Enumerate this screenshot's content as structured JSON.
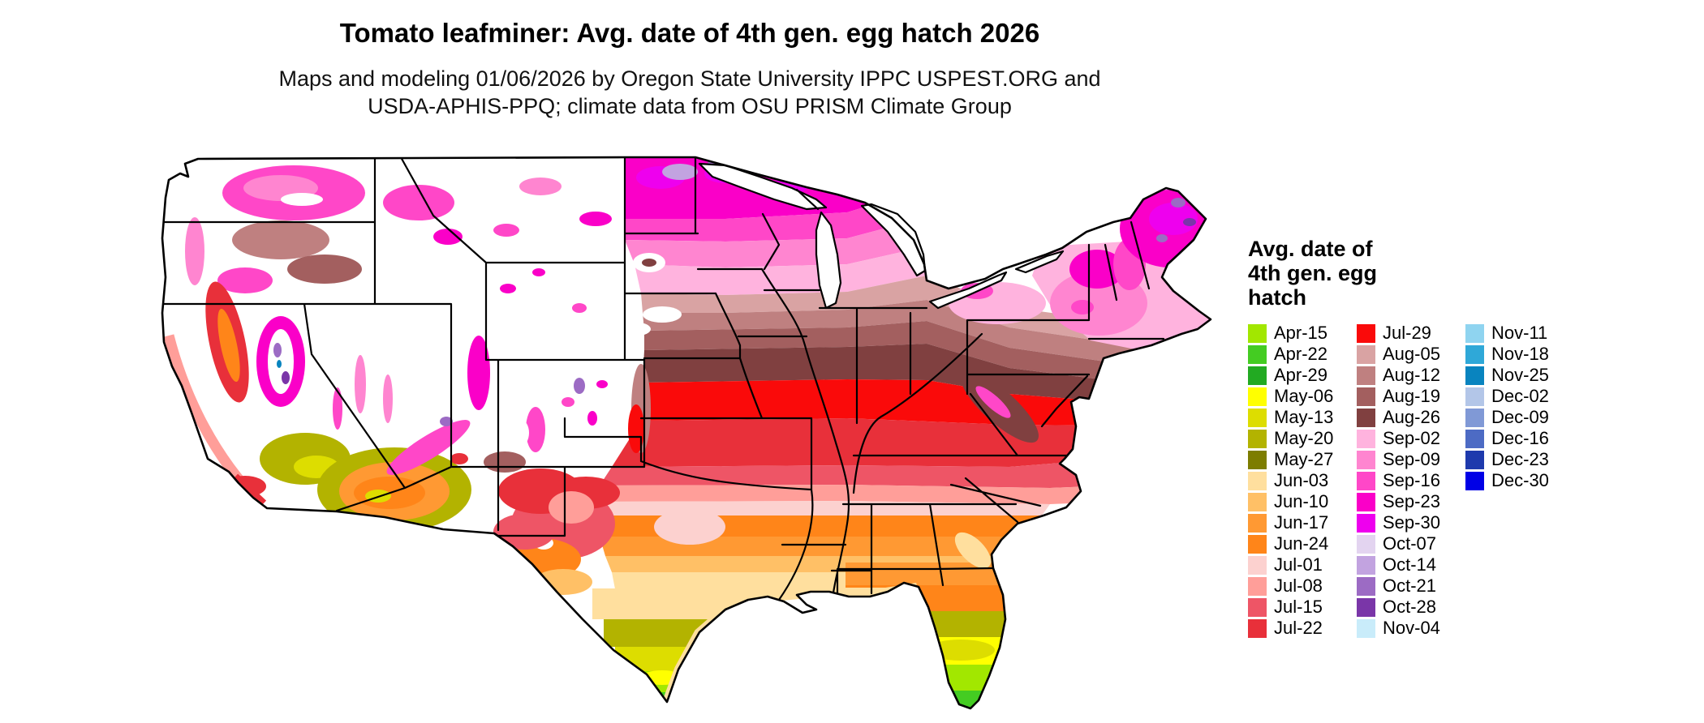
{
  "header": {
    "title": "Tomato leafminer: Avg. date of 4th gen. egg hatch 2026",
    "subtitle_line1": "Maps and modeling 01/06/2026 by Oregon State University IPPC USPEST.ORG and",
    "subtitle_line2": "USDA-APHIS-PPQ; climate data from OSU PRISM Climate Group"
  },
  "legend": {
    "title_lines": [
      "Avg. date of",
      "4th gen. egg",
      "hatch"
    ],
    "columns": [
      {
        "items": [
          {
            "label": "Apr-15",
            "color": "#a2e700"
          },
          {
            "label": "Apr-22",
            "color": "#44cc22"
          },
          {
            "label": "Apr-29",
            "color": "#22aa22"
          },
          {
            "label": "May-06",
            "color": "#ffff00"
          },
          {
            "label": "May-13",
            "color": "#dddd00"
          },
          {
            "label": "May-20",
            "color": "#b3b300"
          },
          {
            "label": "May-27",
            "color": "#7d7d00"
          },
          {
            "label": "Jun-03",
            "color": "#ffdf9e"
          },
          {
            "label": "Jun-10",
            "color": "#ffc066"
          },
          {
            "label": "Jun-17",
            "color": "#ff9933"
          },
          {
            "label": "Jun-24",
            "color": "#ff8519"
          },
          {
            "label": "Jul-01",
            "color": "#fcd1cf"
          },
          {
            "label": "Jul-08",
            "color": "#ff9e99"
          },
          {
            "label": "Jul-15",
            "color": "#ee5566"
          },
          {
            "label": "Jul-22",
            "color": "#e8303a"
          }
        ]
      },
      {
        "items": [
          {
            "label": "Jul-29",
            "color": "#fa0a0a"
          },
          {
            "label": "Aug-05",
            "color": "#d9a3a3"
          },
          {
            "label": "Aug-12",
            "color": "#bf8080"
          },
          {
            "label": "Aug-19",
            "color": "#a35f5f"
          },
          {
            "label": "Aug-26",
            "color": "#804040"
          },
          {
            "label": "Sep-02",
            "color": "#ffb3de"
          },
          {
            "label": "Sep-09",
            "color": "#ff85d0"
          },
          {
            "label": "Sep-16",
            "color": "#ff47c8"
          },
          {
            "label": "Sep-23",
            "color": "#fa00c8"
          },
          {
            "label": "Sep-30",
            "color": "#ee00ee"
          },
          {
            "label": "Oct-07",
            "color": "#e3d4f0"
          },
          {
            "label": "Oct-14",
            "color": "#c2a3e0"
          },
          {
            "label": "Oct-21",
            "color": "#9c6bc4"
          },
          {
            "label": "Oct-28",
            "color": "#7a36a8"
          },
          {
            "label": "Nov-04",
            "color": "#c9ecfa"
          }
        ]
      },
      {
        "items": [
          {
            "label": "Nov-11",
            "color": "#8fd4f0"
          },
          {
            "label": "Nov-18",
            "color": "#2fa8d8"
          },
          {
            "label": "Nov-25",
            "color": "#0984bf"
          },
          {
            "label": "Dec-02",
            "color": "#b3c6e8"
          },
          {
            "label": "Dec-09",
            "color": "#8099d6"
          },
          {
            "label": "Dec-16",
            "color": "#4d6bc4"
          },
          {
            "label": "Dec-23",
            "color": "#1e3aad"
          },
          {
            "label": "Dec-30",
            "color": "#0000e6"
          }
        ]
      }
    ]
  }
}
